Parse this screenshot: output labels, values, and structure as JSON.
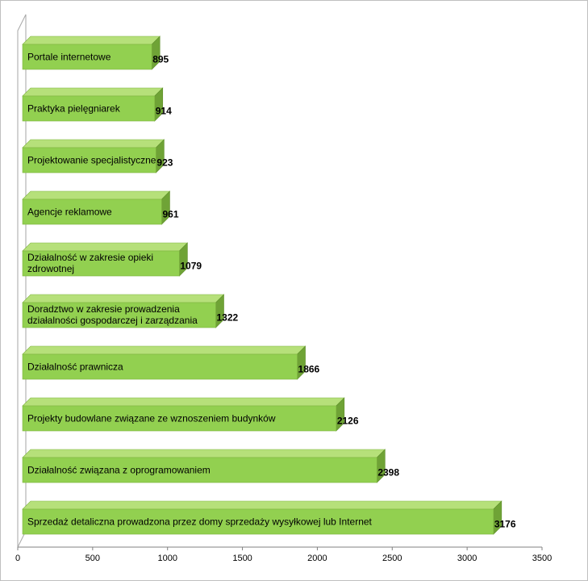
{
  "chart_data": {
    "type": "bar",
    "orientation": "horizontal",
    "three_d": true,
    "bar_color": "#92d050",
    "title": "",
    "xlabel": "",
    "ylabel": "",
    "xlim": [
      0,
      3500
    ],
    "x_ticks": [
      0,
      500,
      1000,
      1500,
      2000,
      2500,
      3000,
      3500
    ],
    "grid": false,
    "legend": "none",
    "categories": [
      [
        "Portale internetowe"
      ],
      [
        "Praktyka pielęgniarek"
      ],
      [
        "Projektowanie specjalistyczne"
      ],
      [
        "Agencje reklamowe"
      ],
      [
        "Działalność w zakresie opieki",
        "zdrowotnej"
      ],
      [
        "Doradztwo w zakresie prowadzenia",
        "działalności gospodarczej i zarządzania"
      ],
      [
        "Działalność prawnicza"
      ],
      [
        "Projekty budowlane związane ze wznoszeniem budynków"
      ],
      [
        "Działalność związana z oprogramowaniem"
      ],
      [
        "Sprzedaż detaliczna prowadzona przez domy sprzedaży wysyłkowej lub Internet"
      ]
    ],
    "values": [
      895,
      914,
      923,
      961,
      1079,
      1322,
      1866,
      2126,
      2398,
      3176
    ]
  }
}
